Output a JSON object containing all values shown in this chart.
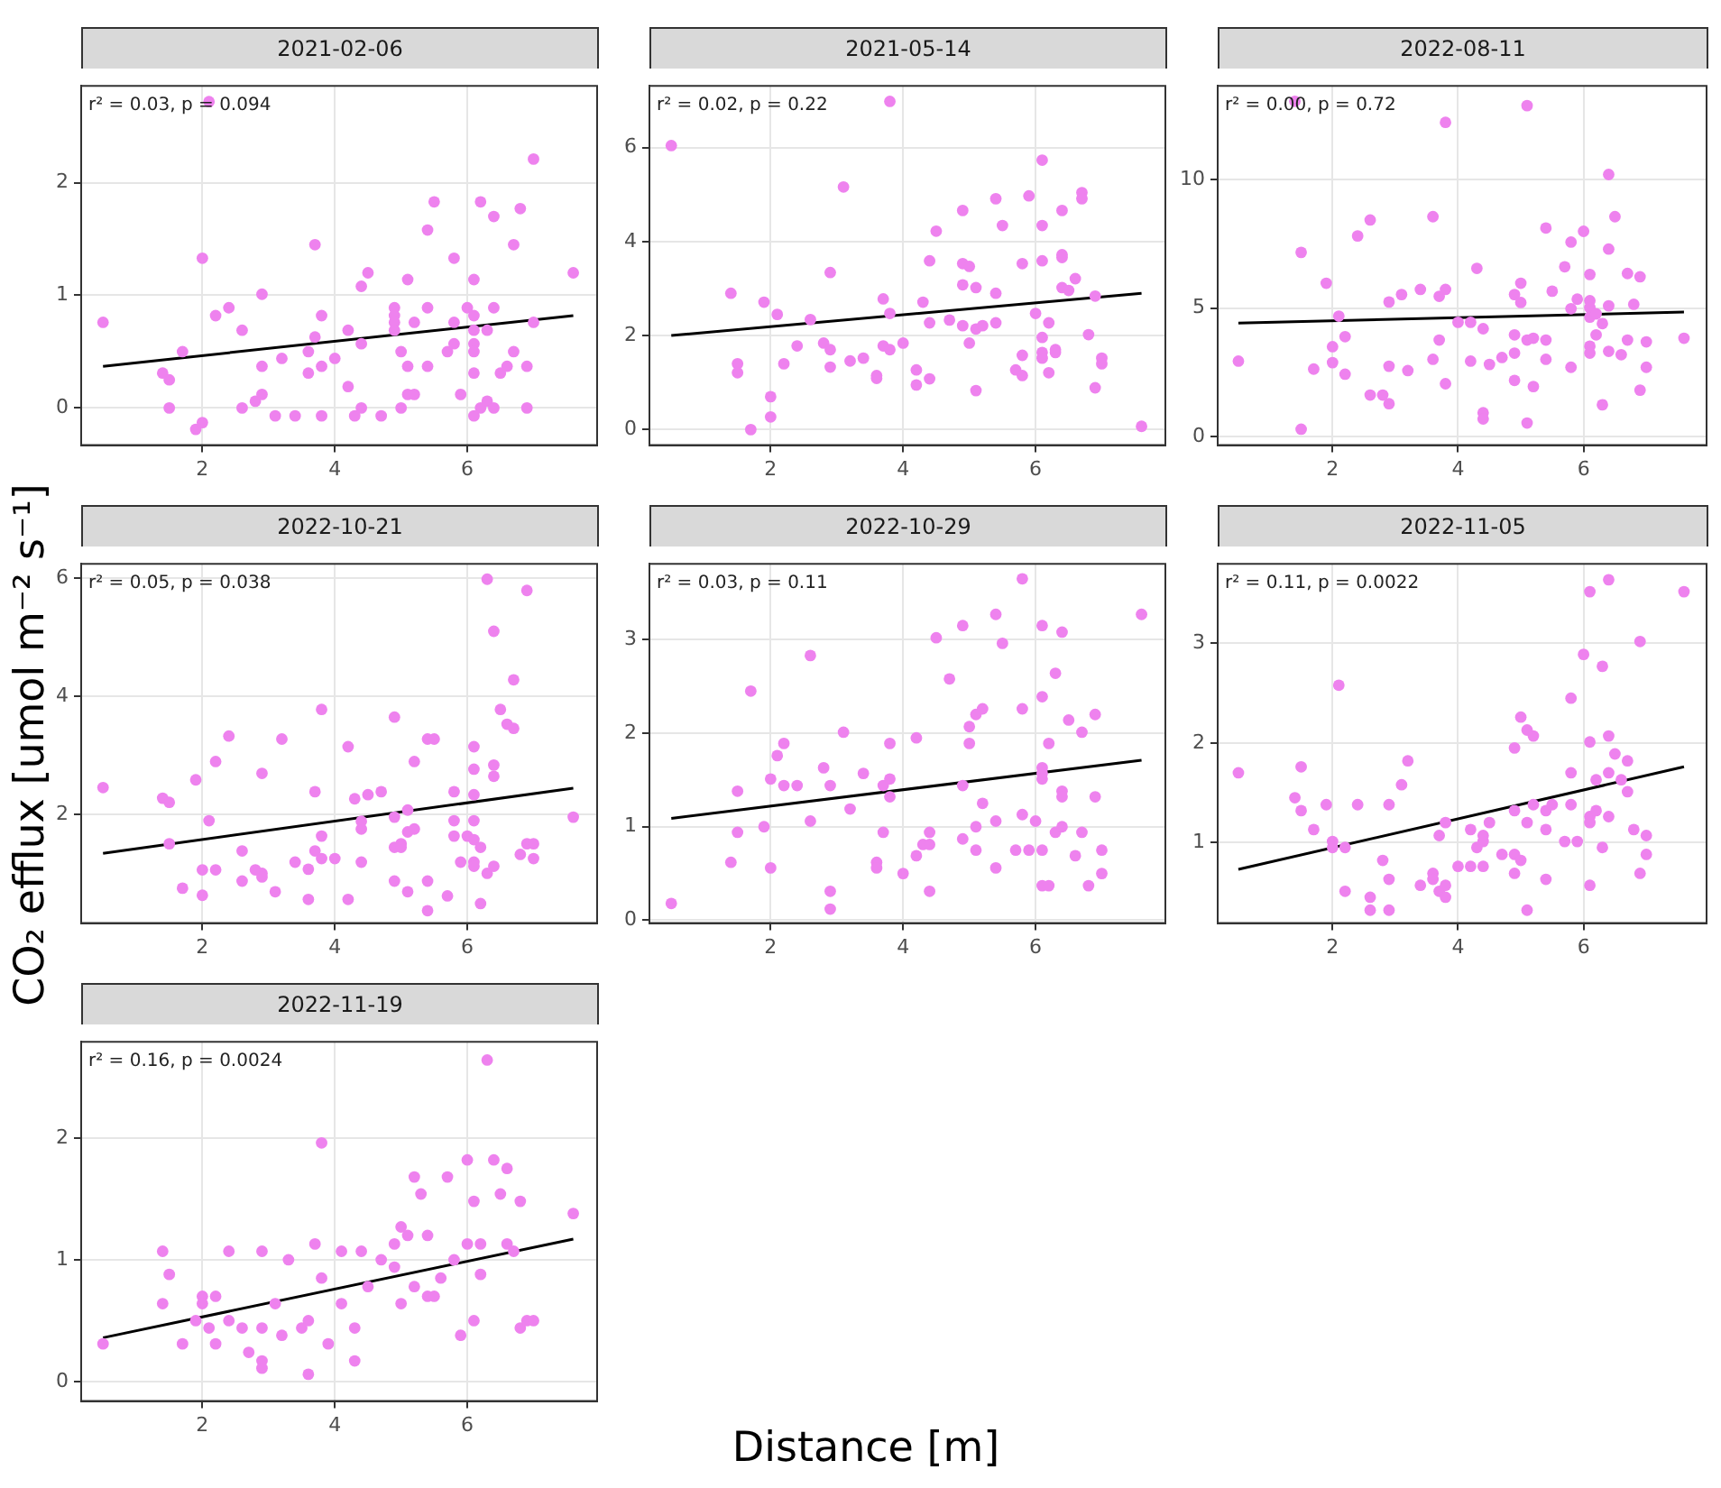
{
  "chart_data": [
    {
      "type": "scatter",
      "title": "2021-02-06",
      "annotations": [
        "r² = 0.03, p = 0.094"
      ],
      "xlim": [
        0.17,
        7.96
      ],
      "xticks": [
        2,
        4,
        6
      ],
      "ylim": [
        -0.33,
        2.86
      ],
      "yticks": [
        0,
        1,
        2
      ],
      "grid": true,
      "marker": "circle",
      "series": [
        {
          "color": "#ee82ee",
          "x": [
            0.5,
            2.1,
            1.4,
            1.5,
            1.5,
            1.7,
            1.9,
            2.0,
            2.0,
            2.2,
            2.4,
            2.6,
            2.6,
            2.8,
            2.9,
            2.9,
            2.9,
            3.1,
            3.2,
            3.4,
            3.6,
            3.6,
            3.7,
            3.7,
            3.8,
            3.8,
            3.8,
            4.0,
            4.2,
            4.2,
            4.3,
            4.4,
            4.4,
            4.4,
            4.5,
            4.7,
            4.9,
            4.9,
            4.9,
            4.9,
            5.0,
            5.0,
            5.1,
            5.1,
            5.1,
            5.2,
            5.2,
            5.4,
            5.4,
            5.4,
            5.5,
            5.7,
            5.8,
            5.8,
            5.8,
            5.9,
            6.0,
            6.1,
            6.1,
            6.1,
            6.1,
            6.1,
            6.1,
            6.1,
            6.2,
            6.2,
            6.3,
            6.3,
            6.4,
            6.4,
            6.4,
            6.5,
            6.6,
            6.7,
            6.7,
            6.8,
            6.9,
            6.9,
            7.0,
            7.0,
            7.6
          ],
          "values": [
            0.76,
            2.72,
            0.31,
            0.25,
            0,
            0.5,
            -0.19,
            -0.13,
            1.33,
            0.82,
            0.89,
            0.69,
            0,
            0.06,
            1.01,
            0.37,
            0.12,
            -0.07,
            0.44,
            -0.07,
            0.31,
            0.5,
            0.63,
            1.45,
            0.82,
            0.37,
            -0.07,
            0.44,
            0.69,
            0.19,
            -0.07,
            1.08,
            0.57,
            0,
            1.2,
            -0.07,
            0.89,
            0.82,
            0.76,
            0.69,
            0.5,
            0,
            1.14,
            0.37,
            0.12,
            0.12,
            0.76,
            1.58,
            0.89,
            0.37,
            1.83,
            0.5,
            1.33,
            0.76,
            0.57,
            0.12,
            0.89,
            1.14,
            0.82,
            0.69,
            0.57,
            0.5,
            0.31,
            -0.07,
            1.83,
            0,
            0.69,
            0.06,
            1.7,
            0.89,
            0,
            0.31,
            0.37,
            1.45,
            0.5,
            1.77,
            0.37,
            0,
            2.21,
            0.76,
            1.2
          ]
        },
        {
          "type": "line",
          "color": "#000000",
          "x": [
            0.5,
            7.6
          ],
          "values": [
            0.37,
            0.82
          ],
          "marker": "none"
        }
      ]
    },
    {
      "type": "scatter",
      "title": "2021-05-14",
      "annotations": [
        "r² = 0.02, p = 0.22"
      ],
      "xlim": [
        0.17,
        7.96
      ],
      "xticks": [
        2,
        4,
        6
      ],
      "ylim": [
        -0.33,
        7.31
      ],
      "yticks": [
        0,
        2,
        4,
        6
      ],
      "grid": true,
      "marker": "circle",
      "series": [
        {
          "color": "#ee82ee",
          "x": [
            0.5,
            3.8,
            1.4,
            1.5,
            1.5,
            1.7,
            1.9,
            2.0,
            2.0,
            2.1,
            2.2,
            2.4,
            2.6,
            2.8,
            2.9,
            2.9,
            2.9,
            3.1,
            3.2,
            3.4,
            3.6,
            3.6,
            3.7,
            3.7,
            3.8,
            3.8,
            4.0,
            4.2,
            4.2,
            4.3,
            4.4,
            4.4,
            4.4,
            4.5,
            4.7,
            4.9,
            4.9,
            4.9,
            4.9,
            5.0,
            5.0,
            5.1,
            5.1,
            5.1,
            5.2,
            5.4,
            5.4,
            5.4,
            5.5,
            5.7,
            5.8,
            5.8,
            5.8,
            5.9,
            6.0,
            6.1,
            6.1,
            6.1,
            6.1,
            6.1,
            6.1,
            6.2,
            6.2,
            6.3,
            6.3,
            6.4,
            6.4,
            6.4,
            6.4,
            6.5,
            6.6,
            6.7,
            6.7,
            6.8,
            6.9,
            6.9,
            7.0,
            7.0,
            7.6
          ],
          "values": [
            6.04,
            6.98,
            2.9,
            1.4,
            1.21,
            0,
            2.71,
            0.7,
            0.27,
            2.45,
            1.4,
            1.78,
            2.34,
            1.84,
            1.7,
            1.33,
            3.34,
            5.16,
            1.46,
            1.52,
            1.15,
            1.09,
            2.78,
            1.78,
            1.7,
            2.47,
            1.84,
            1.27,
            0.95,
            2.71,
            3.59,
            2.27,
            1.08,
            4.22,
            2.33,
            4.66,
            3.53,
            3.08,
            2.21,
            3.47,
            1.84,
            3.02,
            2.14,
            0.83,
            2.21,
            4.91,
            2.9,
            2.27,
            4.34,
            1.27,
            3.53,
            1.58,
            1.15,
            4.97,
            2.47,
            5.73,
            4.34,
            3.59,
            1.96,
            1.64,
            1.52,
            2.27,
            1.21,
            1.7,
            1.64,
            4.66,
            3.72,
            3.66,
            3.02,
            2.96,
            3.21,
            5.04,
            4.91,
            2.02,
            2.84,
            0.89,
            1.52,
            1.4,
            0.07
          ]
        },
        {
          "type": "line",
          "color": "#000000",
          "x": [
            0.5,
            7.6
          ],
          "values": [
            2.0,
            2.9
          ],
          "marker": "none"
        }
      ]
    },
    {
      "type": "scatter",
      "title": "2022-08-11",
      "annotations": [
        "r² = 0.00, p = 0.72"
      ],
      "xlim": [
        0.17,
        7.96
      ],
      "xticks": [
        2,
        4,
        6
      ],
      "ylim": [
        -0.33,
        13.65
      ],
      "yticks": [
        0,
        5,
        10
      ],
      "grid": true,
      "marker": "circle",
      "series": [
        {
          "color": "#ee82ee",
          "x": [
            0.5,
            1.4,
            1.5,
            1.5,
            1.7,
            1.9,
            2.0,
            2.0,
            2.1,
            2.2,
            2.2,
            2.4,
            2.6,
            2.6,
            2.8,
            2.9,
            2.9,
            2.9,
            3.1,
            3.2,
            3.4,
            3.6,
            3.6,
            3.7,
            3.7,
            3.8,
            3.8,
            3.8,
            4.0,
            4.2,
            4.2,
            4.3,
            4.4,
            4.4,
            4.4,
            4.5,
            4.7,
            4.9,
            4.9,
            4.9,
            4.9,
            5.0,
            5.0,
            5.1,
            5.1,
            5.1,
            5.2,
            5.2,
            5.4,
            5.4,
            5.4,
            5.5,
            5.7,
            5.8,
            5.8,
            5.8,
            5.9,
            6.0,
            6.1,
            6.1,
            6.1,
            6.1,
            6.1,
            6.1,
            6.2,
            6.2,
            6.3,
            6.3,
            6.4,
            6.4,
            6.4,
            6.4,
            6.5,
            6.6,
            6.7,
            6.7,
            6.8,
            6.9,
            6.9,
            7.0,
            7.0,
            7.6
          ],
          "values": [
            2.94,
            13.05,
            7.17,
            0.29,
            2.63,
            5.97,
            3.5,
            2.88,
            4.69,
            3.89,
            2.43,
            7.81,
            8.43,
            1.62,
            1.62,
            5.24,
            2.74,
            1.28,
            5.53,
            2.57,
            5.73,
            8.56,
            3.01,
            5.46,
            3.76,
            5.73,
            12.23,
            2.06,
            4.45,
            4.45,
            2.94,
            6.55,
            4.2,
            0.93,
            0.69,
            2.81,
            3.08,
            5.53,
            3.96,
            3.25,
            2.19,
            5.97,
            5.22,
            12.88,
            3.76,
            0.53,
            3.83,
            1.95,
            8.12,
            3.76,
            3.01,
            5.66,
            6.61,
            7.57,
            4.98,
            2.7,
            5.35,
            7.99,
            6.31,
            5.29,
            5.02,
            4.65,
            3.52,
            3.25,
            4.78,
            3.96,
            4.4,
            1.24,
            10.2,
            7.3,
            5.09,
            3.32,
            8.56,
            3.19,
            6.35,
            3.76,
            5.15,
            6.22,
            1.81,
            3.69,
            2.7,
            3.83
          ]
        },
        {
          "type": "line",
          "color": "#000000",
          "x": [
            0.5,
            7.6
          ],
          "values": [
            4.42,
            4.85
          ],
          "marker": "none"
        }
      ]
    },
    {
      "type": "scatter",
      "title": "2022-10-21",
      "ylabel": "CO₂ efflux [umol m⁻² s⁻¹]",
      "annotations": [
        "r² = 0.05, p = 0.038"
      ],
      "xlim": [
        0.17,
        7.96
      ],
      "xticks": [
        2,
        4,
        6
      ],
      "ylim": [
        0.17,
        6.24
      ],
      "yticks": [
        2,
        4,
        6
      ],
      "grid": true,
      "marker": "circle",
      "series": [
        {
          "color": "#ee82ee",
          "x": [
            0.5,
            1.4,
            1.5,
            1.5,
            1.7,
            1.9,
            2.0,
            2.0,
            2.1,
            2.2,
            2.2,
            2.4,
            2.6,
            2.6,
            2.8,
            2.9,
            2.9,
            2.9,
            3.1,
            3.2,
            3.4,
            3.6,
            3.6,
            3.7,
            3.7,
            3.8,
            3.8,
            3.8,
            4.0,
            4.2,
            4.2,
            4.3,
            4.4,
            4.4,
            4.4,
            4.5,
            4.7,
            4.9,
            4.9,
            4.9,
            4.9,
            5.0,
            5.0,
            5.1,
            5.1,
            5.1,
            5.2,
            5.2,
            5.4,
            5.4,
            5.4,
            5.5,
            5.7,
            5.8,
            5.8,
            5.8,
            5.9,
            6.0,
            6.1,
            6.1,
            6.1,
            6.1,
            6.1,
            6.1,
            6.1,
            6.2,
            6.2,
            6.3,
            6.3,
            6.4,
            6.4,
            6.4,
            6.4,
            6.5,
            6.6,
            6.7,
            6.7,
            6.8,
            6.9,
            6.9,
            7.0,
            7.0,
            7.6
          ],
          "values": [
            2.46,
            2.28,
            2.21,
            1.51,
            0.76,
            2.59,
            1.07,
            0.64,
            1.9,
            2.9,
            1.07,
            3.33,
            1.39,
            0.88,
            1.07,
            2.7,
            1.01,
            0.95,
            0.7,
            3.28,
            1.2,
            1.08,
            0.57,
            2.39,
            1.39,
            3.78,
            1.64,
            1.26,
            1.26,
            3.15,
            0.57,
            2.27,
            1.89,
            1.76,
            1.2,
            2.34,
            2.39,
            3.65,
            1.96,
            1.45,
            0.88,
            1.51,
            1.45,
            2.08,
            1.71,
            0.7,
            1.76,
            2.9,
            3.28,
            0.88,
            0.38,
            3.28,
            0.63,
            2.39,
            1.9,
            1.64,
            1.2,
            1.64,
            3.15,
            2.77,
            2.34,
            1.9,
            1.58,
            1.2,
            1.13,
            1.45,
            0.5,
            5.98,
            1.01,
            2.84,
            2.65,
            5.1,
            1.13,
            3.78,
            3.53,
            4.28,
            3.46,
            1.33,
            5.79,
            1.51,
            1.51,
            1.26,
            1.96
          ]
        },
        {
          "type": "line",
          "color": "#000000",
          "x": [
            0.5,
            7.6
          ],
          "values": [
            1.35,
            2.45
          ],
          "marker": "none"
        }
      ]
    },
    {
      "type": "scatter",
      "title": "2022-10-29",
      "annotations": [
        "r² = 0.03, p = 0.11"
      ],
      "xlim": [
        0.17,
        7.96
      ],
      "xticks": [
        2,
        4,
        6
      ],
      "ylim": [
        -0.03,
        3.81
      ],
      "yticks": [
        0,
        1,
        2,
        3
      ],
      "grid": true,
      "marker": "circle",
      "series": [
        {
          "color": "#ee82ee",
          "x": [
            0.5,
            1.4,
            1.5,
            1.5,
            1.7,
            1.9,
            2.0,
            2.0,
            2.1,
            2.2,
            2.2,
            2.4,
            2.6,
            2.6,
            2.8,
            2.9,
            2.9,
            2.9,
            3.1,
            3.2,
            3.4,
            3.6,
            3.6,
            3.7,
            3.7,
            3.8,
            3.8,
            3.8,
            4.0,
            4.2,
            4.2,
            4.3,
            4.4,
            4.4,
            4.4,
            4.5,
            4.7,
            4.9,
            4.9,
            4.9,
            5.0,
            5.0,
            5.1,
            5.1,
            5.1,
            5.2,
            5.2,
            5.4,
            5.4,
            5.4,
            5.5,
            5.7,
            5.8,
            5.8,
            5.8,
            5.9,
            6.0,
            6.1,
            6.1,
            6.1,
            6.1,
            6.1,
            6.1,
            6.1,
            6.2,
            6.2,
            6.3,
            6.3,
            6.4,
            6.4,
            6.4,
            6.4,
            6.5,
            6.6,
            6.7,
            6.7,
            6.8,
            6.9,
            6.9,
            7.0,
            7.0,
            7.6
          ],
          "values": [
            0.18,
            0.62,
            1.38,
            0.94,
            2.45,
            1.0,
            1.51,
            0.56,
            1.76,
            1.89,
            1.44,
            1.44,
            2.83,
            1.06,
            1.63,
            1.44,
            0.31,
            0.12,
            2.01,
            1.19,
            1.57,
            0.62,
            0.56,
            1.44,
            0.94,
            1.89,
            1.51,
            1.32,
            0.5,
            1.95,
            0.69,
            0.81,
            0.81,
            0.94,
            0.31,
            3.02,
            2.58,
            3.15,
            1.44,
            0.87,
            2.07,
            1.89,
            2.2,
            1.0,
            0.75,
            2.26,
            1.25,
            3.27,
            1.06,
            0.56,
            2.96,
            0.75,
            3.65,
            2.26,
            1.13,
            0.75,
            1.06,
            3.15,
            2.39,
            1.63,
            1.57,
            1.51,
            0.75,
            0.37,
            0.37,
            1.89,
            2.64,
            0.94,
            3.08,
            1.38,
            1.32,
            1.0,
            2.14,
            0.69,
            2.01,
            0.94,
            0.37,
            2.2,
            1.32,
            0.75,
            0.5,
            3.27
          ]
        },
        {
          "type": "line",
          "color": "#000000",
          "x": [
            0.5,
            7.6
          ],
          "values": [
            1.09,
            1.71
          ],
          "marker": "none"
        }
      ]
    },
    {
      "type": "scatter",
      "title": "2022-11-05",
      "annotations": [
        "r² = 0.11, p = 0.0022"
      ],
      "xlim": [
        0.17,
        7.96
      ],
      "xticks": [
        2,
        4,
        6
      ],
      "ylim": [
        0.19,
        3.8
      ],
      "yticks": [
        1,
        2,
        3
      ],
      "grid": true,
      "marker": "circle",
      "series": [
        {
          "color": "#ee82ee",
          "x": [
            0.5,
            1.4,
            1.5,
            1.5,
            1.7,
            1.9,
            2.0,
            2.0,
            2.1,
            2.2,
            2.2,
            2.4,
            2.6,
            2.6,
            2.8,
            2.9,
            2.9,
            2.9,
            3.1,
            3.2,
            3.4,
            3.6,
            3.6,
            3.7,
            3.7,
            3.8,
            3.8,
            3.8,
            4.0,
            4.2,
            4.2,
            4.3,
            4.4,
            4.4,
            4.4,
            4.5,
            4.7,
            4.9,
            4.9,
            4.9,
            4.9,
            5.0,
            5.0,
            5.1,
            5.1,
            5.1,
            5.2,
            5.2,
            5.4,
            5.4,
            5.4,
            5.5,
            5.7,
            5.8,
            5.8,
            5.8,
            5.9,
            6.0,
            6.1,
            6.1,
            6.1,
            6.1,
            6.1,
            6.2,
            6.2,
            6.3,
            6.3,
            6.4,
            6.4,
            6.4,
            6.4,
            6.5,
            6.6,
            6.7,
            6.7,
            6.8,
            6.9,
            6.9,
            7.0,
            7.0,
            7.6
          ],
          "values": [
            1.7,
            1.45,
            1.76,
            1.32,
            1.13,
            1.38,
            1.01,
            0.95,
            2.58,
            0.95,
            0.51,
            1.38,
            0.45,
            0.32,
            0.82,
            1.38,
            0.63,
            0.32,
            1.58,
            1.82,
            0.57,
            0.69,
            0.63,
            1.07,
            0.51,
            1.2,
            0.57,
            0.45,
            0.76,
            1.13,
            0.76,
            0.95,
            1.07,
            1.01,
            0.76,
            1.2,
            0.88,
            1.95,
            1.32,
            0.88,
            0.69,
            2.26,
            0.82,
            2.13,
            1.2,
            0.32,
            2.07,
            1.38,
            1.32,
            1.13,
            0.63,
            1.38,
            1.01,
            2.45,
            1.7,
            1.38,
            1.01,
            2.89,
            3.52,
            2.01,
            1.26,
            1.2,
            0.57,
            1.63,
            1.32,
            2.77,
            0.95,
            3.64,
            2.07,
            1.7,
            1.26,
            1.89,
            1.63,
            1.82,
            1.51,
            1.13,
            3.02,
            0.69,
            1.07,
            0.88,
            3.52
          ]
        },
        {
          "type": "line",
          "color": "#000000",
          "x": [
            0.5,
            7.6
          ],
          "values": [
            0.73,
            1.76
          ],
          "marker": "none"
        }
      ]
    },
    {
      "type": "scatter",
      "title": "2022-11-19",
      "xlabel": "Distance [m]",
      "annotations": [
        "r² = 0.16, p = 0.0024"
      ],
      "xlim": [
        0.17,
        7.96
      ],
      "xticks": [
        2,
        4,
        6
      ],
      "ylim": [
        -0.16,
        2.79
      ],
      "yticks": [
        0,
        1,
        2
      ],
      "grid": true,
      "marker": "circle",
      "series": [
        {
          "color": "#ee82ee",
          "x": [
            0.5,
            1.4,
            1.5,
            1.4,
            1.7,
            1.9,
            2.0,
            2.0,
            2.1,
            2.2,
            2.2,
            2.4,
            2.4,
            2.6,
            2.7,
            2.9,
            2.9,
            2.9,
            2.9,
            3.1,
            3.2,
            3.3,
            3.5,
            3.6,
            3.6,
            3.7,
            3.8,
            3.8,
            3.9,
            4.1,
            4.1,
            4.3,
            4.3,
            4.4,
            4.5,
            4.7,
            4.9,
            4.9,
            5.0,
            5.0,
            5.1,
            5.2,
            5.2,
            5.3,
            5.4,
            5.4,
            5.5,
            5.6,
            5.7,
            5.8,
            5.9,
            6.0,
            6.0,
            6.1,
            6.1,
            6.2,
            6.2,
            6.3,
            6.4,
            6.5,
            6.6,
            6.6,
            6.7,
            6.8,
            6.8,
            6.9,
            7.0,
            7.6
          ],
          "values": [
            0.31,
            1.07,
            0.88,
            0.64,
            0.31,
            0.5,
            0.7,
            0.64,
            0.44,
            0.7,
            0.31,
            1.07,
            0.5,
            0.44,
            0.24,
            1.07,
            0.17,
            0.11,
            0.44,
            0.64,
            0.38,
            1.0,
            0.44,
            0.06,
            0.5,
            1.13,
            1.96,
            0.85,
            0.31,
            1.07,
            0.64,
            0.44,
            0.17,
            1.07,
            0.78,
            1.0,
            1.13,
            0.94,
            0.64,
            1.27,
            1.2,
            1.68,
            0.78,
            1.54,
            0.7,
            1.2,
            0.7,
            0.85,
            1.68,
            1.0,
            0.38,
            1.13,
            1.82,
            1.48,
            0.5,
            0.88,
            1.13,
            2.64,
            1.82,
            1.54,
            1.75,
            1.13,
            1.07,
            1.48,
            0.44,
            0.5,
            0.5,
            1.38
          ]
        },
        {
          "type": "line",
          "color": "#000000",
          "x": [
            0.5,
            7.6
          ],
          "values": [
            0.36,
            1.17
          ],
          "marker": "none"
        }
      ]
    }
  ]
}
